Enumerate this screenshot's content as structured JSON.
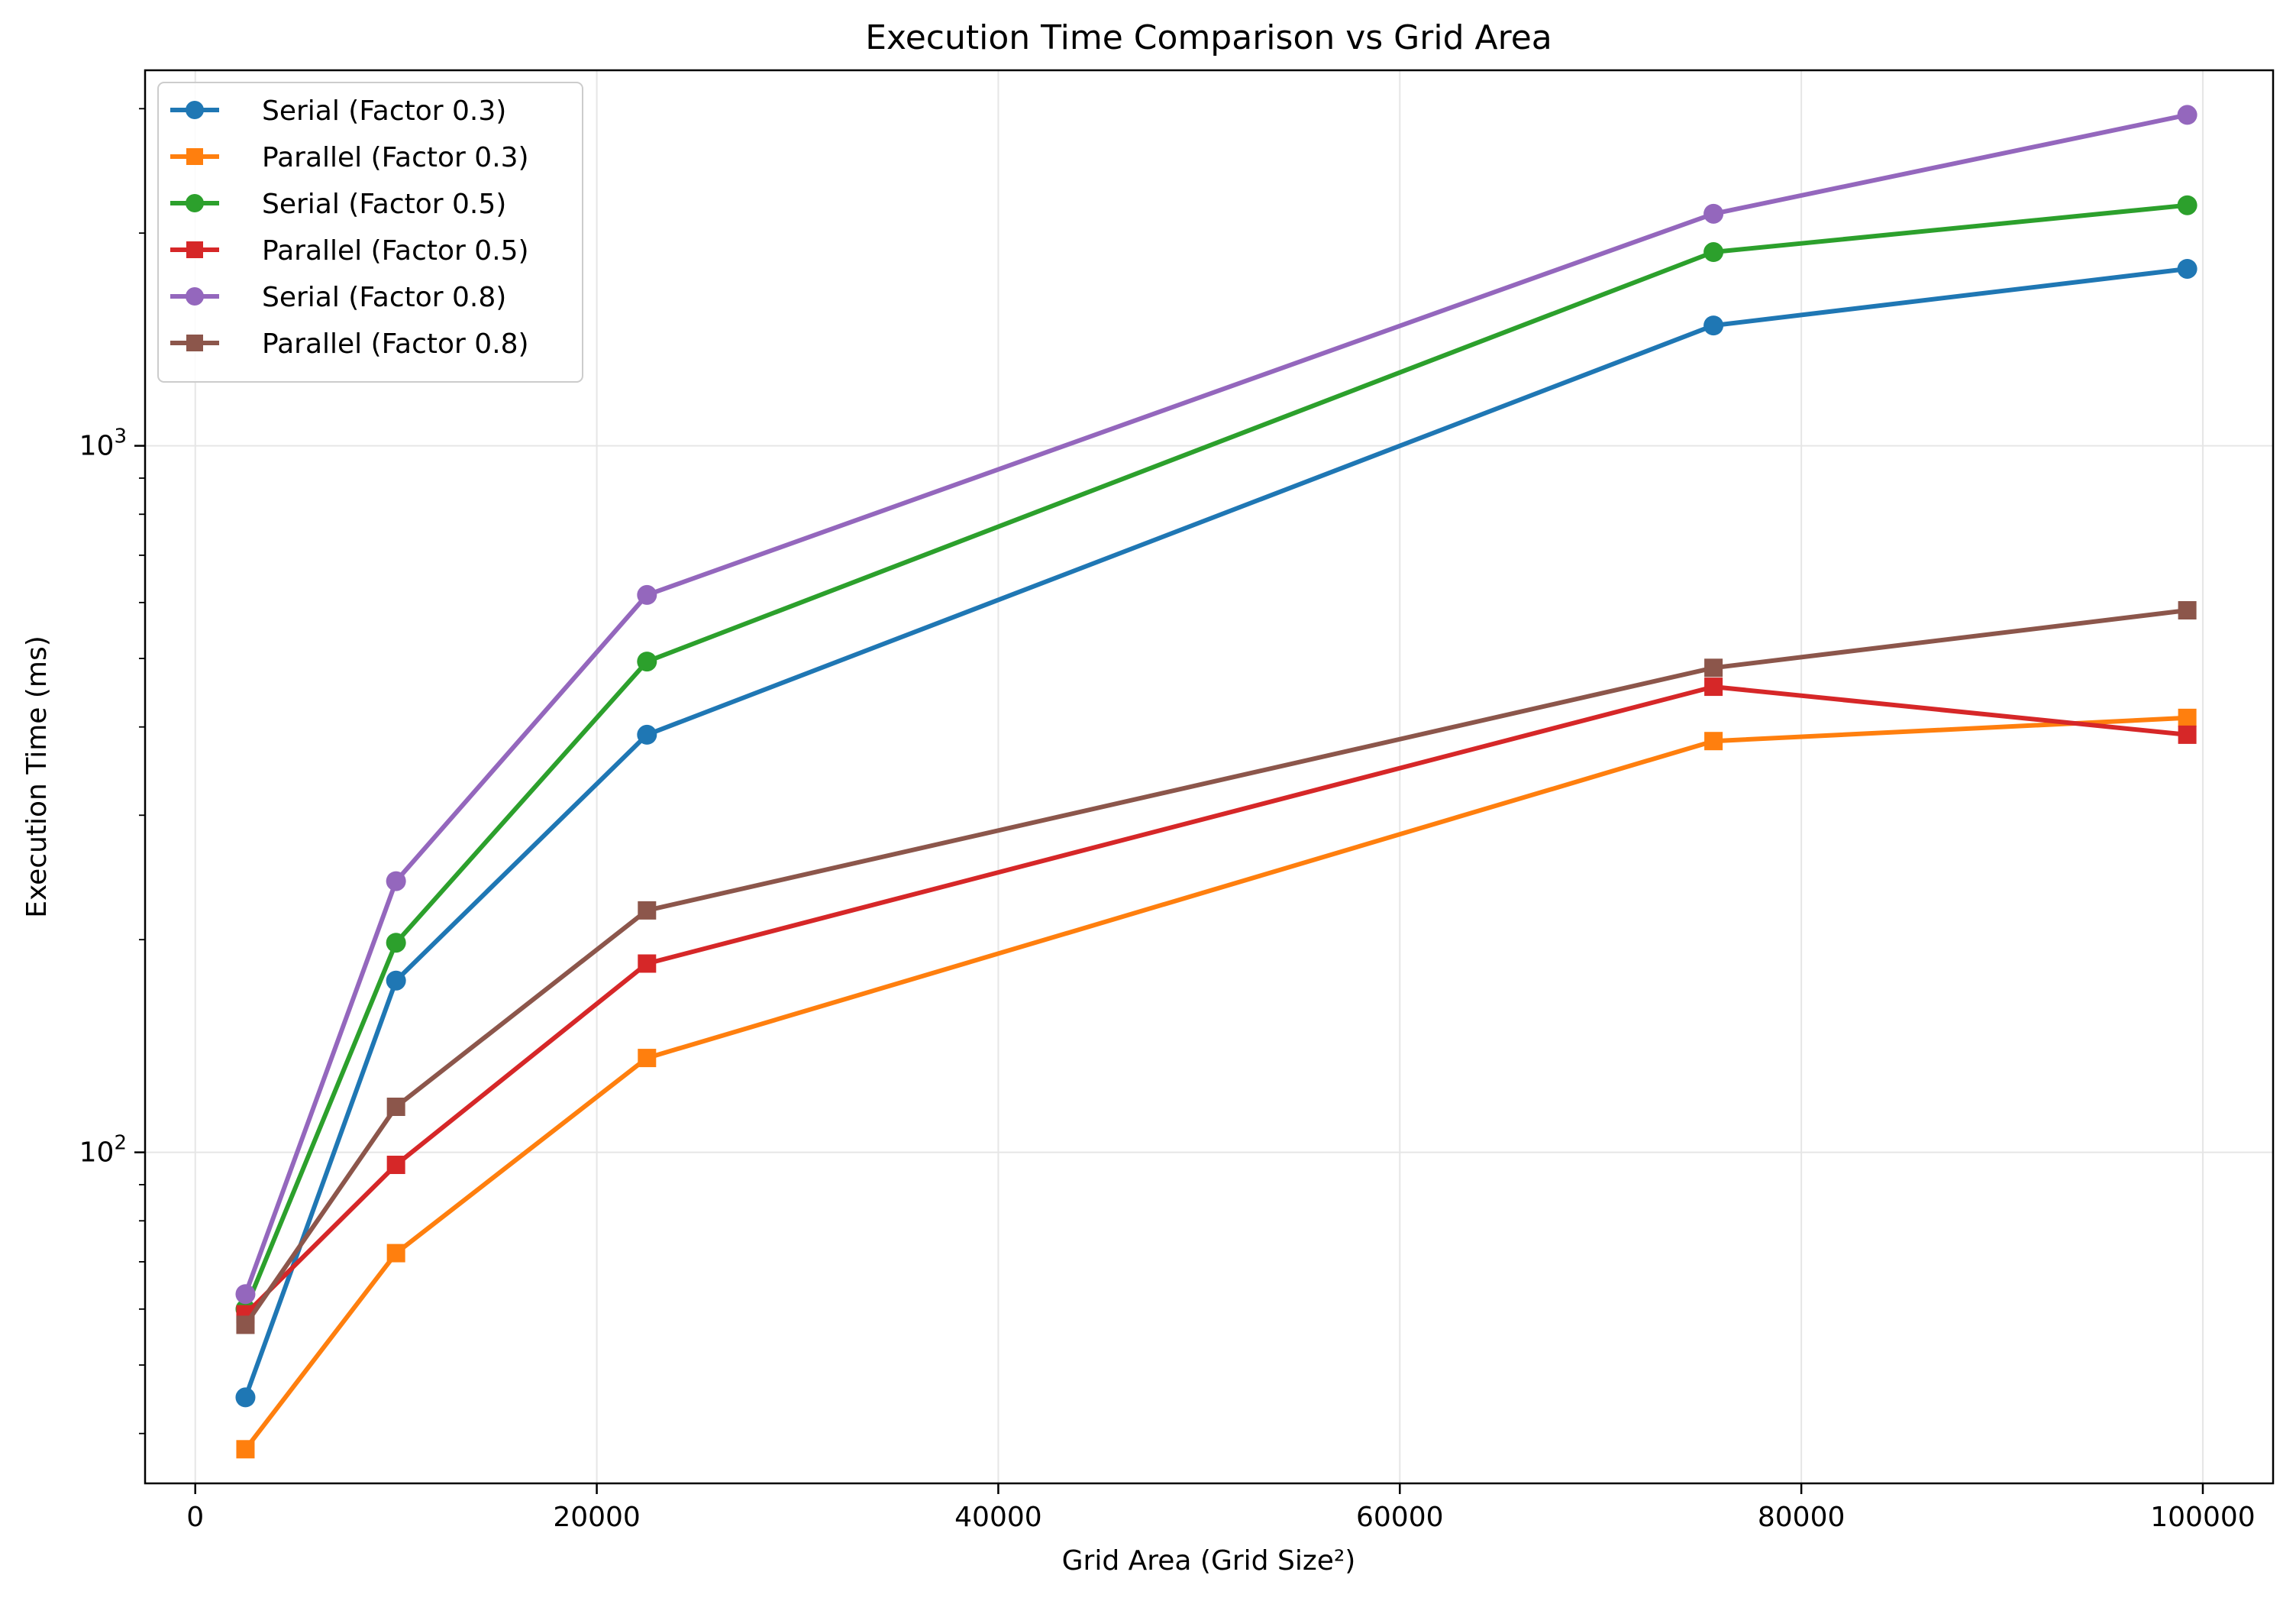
{
  "chart_data": {
    "type": "line",
    "title": "Execution Time Comparison vs Grid Area",
    "xlabel": "Grid Area (Grid Size²)",
    "ylabel": "Execution Time (ms)",
    "x_scale": "linear",
    "y_scale": "log",
    "xlim": [
      -2500,
      103500
    ],
    "ylim": [
      34,
      3400
    ],
    "x_ticks": [
      0,
      20000,
      40000,
      60000,
      80000,
      100000
    ],
    "x_tick_labels": [
      "0",
      "20000",
      "40000",
      "60000",
      "80000",
      "100000"
    ],
    "y_major_ticks": [
      100,
      1000
    ],
    "y_tick_labels": [
      {
        "base": "10",
        "exp": "2"
      },
      {
        "base": "10",
        "exp": "3"
      }
    ],
    "grid": true,
    "legend_position": "upper-left",
    "x": [
      2500,
      10000,
      22500,
      75625,
      99225
    ],
    "series": [
      {
        "name": "Serial (Factor 0.3)",
        "color": "#1f77b4",
        "marker": "circle",
        "values": [
          45,
          175,
          390,
          1480,
          1780
        ]
      },
      {
        "name": "Parallel (Factor 0.3)",
        "color": "#ff7f0e",
        "marker": "square",
        "values": [
          38,
          72,
          136,
          382,
          412
        ]
      },
      {
        "name": "Serial (Factor 0.5)",
        "color": "#2ca02c",
        "marker": "circle",
        "values": [
          60,
          198,
          495,
          1880,
          2190
        ]
      },
      {
        "name": "Parallel (Factor 0.5)",
        "color": "#d62728",
        "marker": "square",
        "values": [
          59,
          96,
          185,
          456,
          390
        ]
      },
      {
        "name": "Serial (Factor 0.8)",
        "color": "#9467bd",
        "marker": "circle",
        "values": [
          63,
          242,
          615,
          2130,
          2940
        ]
      },
      {
        "name": "Parallel (Factor 0.8)",
        "color": "#8c564b",
        "marker": "square",
        "values": [
          57,
          116,
          220,
          485,
          585
        ]
      }
    ]
  }
}
